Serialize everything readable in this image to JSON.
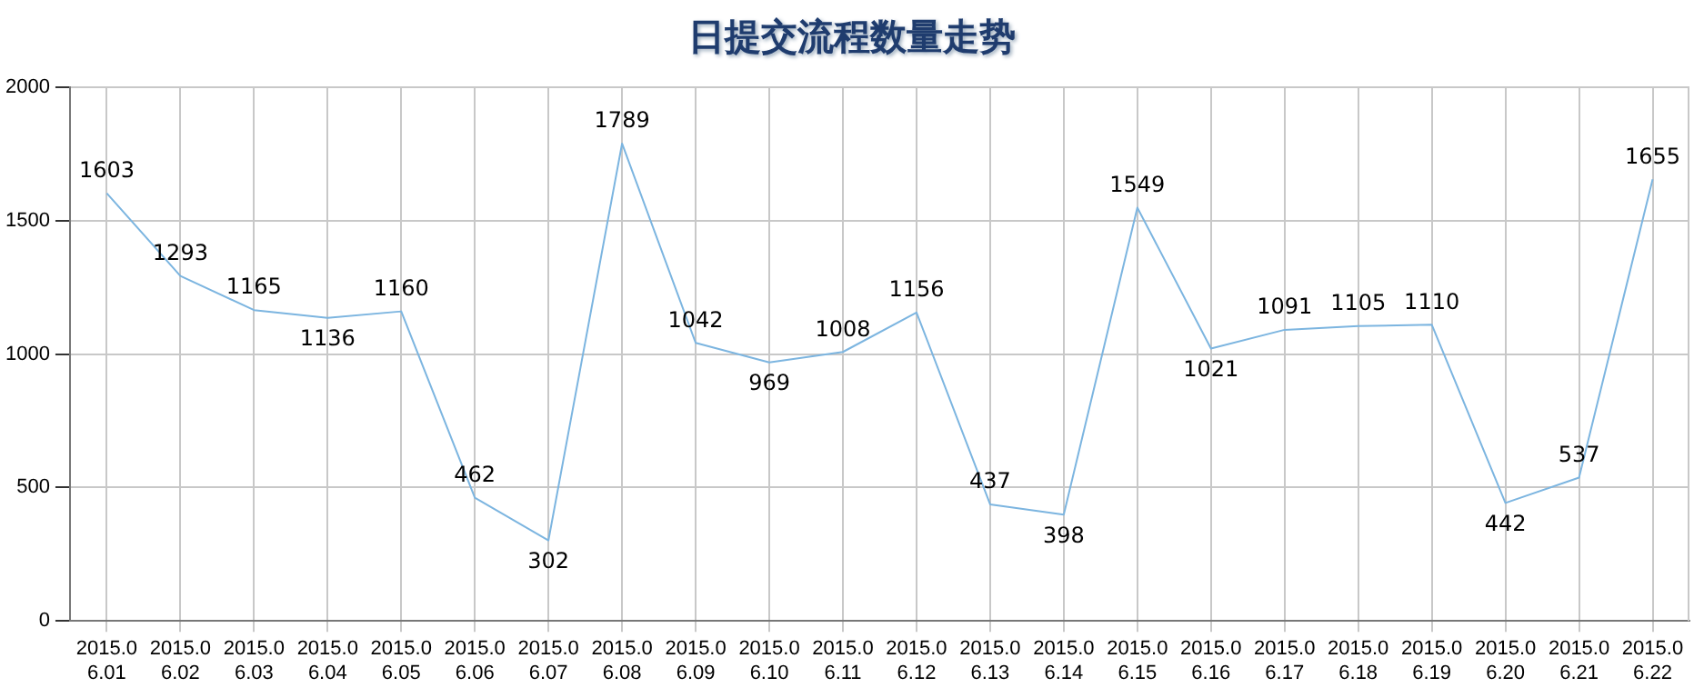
{
  "chart_data": {
    "type": "line",
    "title": "日提交流程数量走势",
    "categories": [
      "2015.06.01",
      "2015.06.02",
      "2015.06.03",
      "2015.06.04",
      "2015.06.05",
      "2015.06.06",
      "2015.06.07",
      "2015.06.08",
      "2015.06.09",
      "2015.06.10",
      "2015.06.11",
      "2015.06.12",
      "2015.06.13",
      "2015.06.14",
      "2015.06.15",
      "2015.06.16",
      "2015.06.17",
      "2015.06.18",
      "2015.06.19",
      "2015.06.20",
      "2015.06.21",
      "2015.06.22"
    ],
    "values": [
      1603,
      1293,
      1165,
      1136,
      1160,
      462,
      302,
      1789,
      1042,
      969,
      1008,
      1156,
      437,
      398,
      1549,
      1021,
      1091,
      1105,
      1110,
      442,
      537,
      1655
    ],
    "color": "#7cb5e0",
    "ylim": [
      0,
      2000
    ],
    "yticks": [
      0,
      500,
      1000,
      1500,
      2000
    ],
    "grid": true,
    "legend": false,
    "marker": "none",
    "line_style": "solid",
    "data_labels": true
  }
}
